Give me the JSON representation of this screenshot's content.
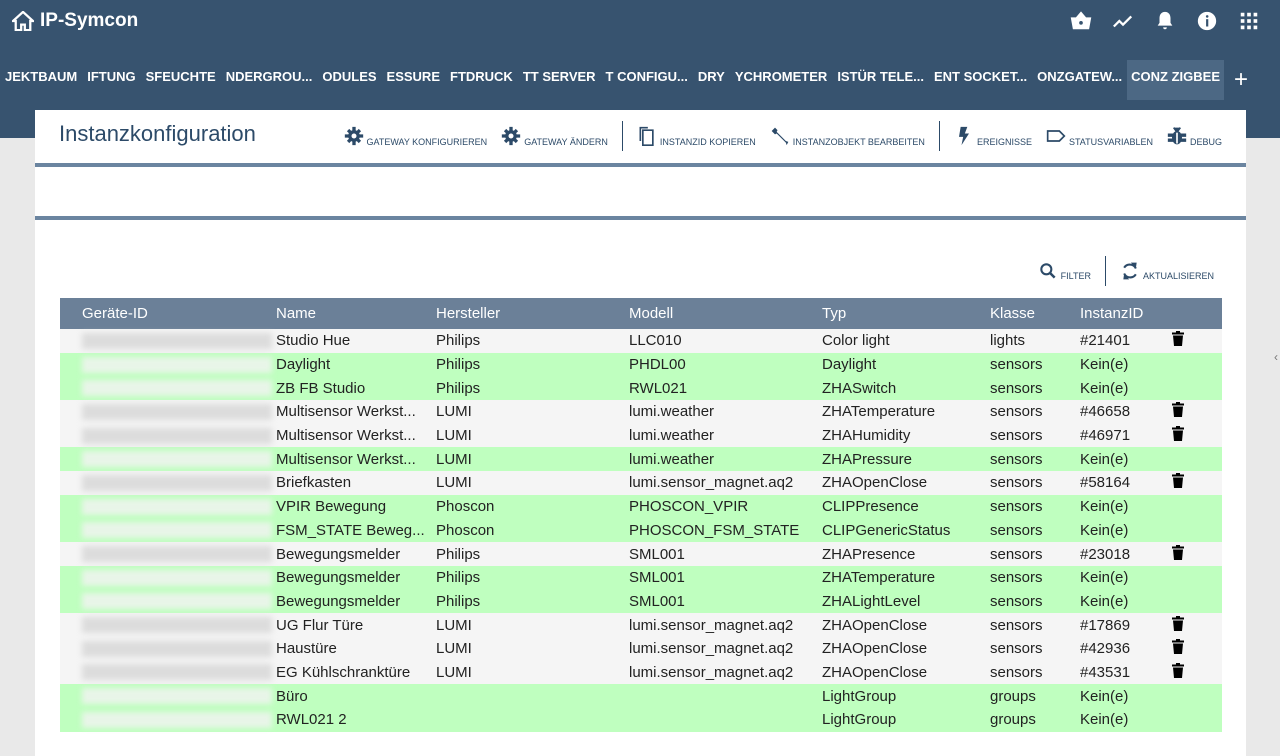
{
  "app": {
    "title": "IP-Symcon"
  },
  "top_icons": [
    "basket-icon",
    "chart-icon",
    "bell-icon",
    "info-icon",
    "grid-icon"
  ],
  "tabs": [
    "JEKTBAUM",
    "IFTUNG",
    "SFEUCHTE",
    "NDERGROU...",
    "ODULES",
    "ESSURE",
    "FTDRUCK",
    "TT SERVER",
    "T CONFIGU...",
    "DRY",
    "YCHROMETER",
    "ISTÜR TELE...",
    "ENT SOCKET...",
    "ONZGATEW...",
    "CONZ ZIGBEE"
  ],
  "active_tab": "CONZ ZIGBEE",
  "page": {
    "title": "Instanzkonfiguration"
  },
  "toolbar": {
    "gateway_config": "GATEWAY KONFIGURIEREN",
    "gateway_change": "GATEWAY ÄNDERN",
    "copy_id": "INSTANZID KOPIEREN",
    "edit": "INSTANZOBJEKT BEARBEITEN",
    "events": "EREIGNISSE",
    "status_vars": "STATUSVARIABLEN",
    "debug": "DEBUG"
  },
  "actions": {
    "filter": "FILTER",
    "refresh": "AKTUALISIEREN"
  },
  "table": {
    "columns": [
      "Geräte-ID",
      "Name",
      "Hersteller",
      "Modell",
      "Typ",
      "Klasse",
      "InstanzID"
    ],
    "rows": [
      {
        "name": "Studio Hue",
        "vendor": "Philips",
        "model": "LLC010",
        "type": "Color light",
        "class": "lights",
        "id": "#21401",
        "del": true,
        "green": false
      },
      {
        "name": "Daylight",
        "vendor": "Philips",
        "model": "PHDL00",
        "type": "Daylight",
        "class": "sensors",
        "id": "Kein(e)",
        "del": false,
        "green": true
      },
      {
        "name": "ZB FB Studio",
        "vendor": "Philips",
        "model": "RWL021",
        "type": "ZHASwitch",
        "class": "sensors",
        "id": "Kein(e)",
        "del": false,
        "green": true
      },
      {
        "name": "Multisensor Werkst...",
        "vendor": "LUMI",
        "model": "lumi.weather",
        "type": "ZHATemperature",
        "class": "sensors",
        "id": "#46658",
        "del": true,
        "green": false
      },
      {
        "name": "Multisensor Werkst...",
        "vendor": "LUMI",
        "model": "lumi.weather",
        "type": "ZHAHumidity",
        "class": "sensors",
        "id": "#46971",
        "del": true,
        "green": false
      },
      {
        "name": "Multisensor Werkst...",
        "vendor": "LUMI",
        "model": "lumi.weather",
        "type": "ZHAPressure",
        "class": "sensors",
        "id": "Kein(e)",
        "del": false,
        "green": true
      },
      {
        "name": "Briefkasten",
        "vendor": "LUMI",
        "model": "lumi.sensor_magnet.aq2",
        "type": "ZHAOpenClose",
        "class": "sensors",
        "id": "#58164",
        "del": true,
        "green": false
      },
      {
        "name": "VPIR Bewegung",
        "vendor": "Phoscon",
        "model": "PHOSCON_VPIR",
        "type": "CLIPPresence",
        "class": "sensors",
        "id": "Kein(e)",
        "del": false,
        "green": true
      },
      {
        "name": "FSM_STATE Beweg...",
        "vendor": "Phoscon",
        "model": "PHOSCON_FSM_STATE",
        "type": "CLIPGenericStatus",
        "class": "sensors",
        "id": "Kein(e)",
        "del": false,
        "green": true
      },
      {
        "name": "Bewegungsmelder",
        "vendor": "Philips",
        "model": "SML001",
        "type": "ZHAPresence",
        "class": "sensors",
        "id": "#23018",
        "del": true,
        "green": false
      },
      {
        "name": "Bewegungsmelder",
        "vendor": "Philips",
        "model": "SML001",
        "type": "ZHATemperature",
        "class": "sensors",
        "id": "Kein(e)",
        "del": false,
        "green": true
      },
      {
        "name": "Bewegungsmelder",
        "vendor": "Philips",
        "model": "SML001",
        "type": "ZHALightLevel",
        "class": "sensors",
        "id": "Kein(e)",
        "del": false,
        "green": true
      },
      {
        "name": "UG Flur Türe",
        "vendor": "LUMI",
        "model": "lumi.sensor_magnet.aq2",
        "type": "ZHAOpenClose",
        "class": "sensors",
        "id": "#17869",
        "del": true,
        "green": false
      },
      {
        "name": "Haustüre",
        "vendor": "LUMI",
        "model": "lumi.sensor_magnet.aq2",
        "type": "ZHAOpenClose",
        "class": "sensors",
        "id": "#42936",
        "del": true,
        "green": false
      },
      {
        "name": "EG Kühlschranktüre",
        "vendor": "LUMI",
        "model": "lumi.sensor_magnet.aq2",
        "type": "ZHAOpenClose",
        "class": "sensors",
        "id": "#43531",
        "del": true,
        "green": false
      },
      {
        "name": "Büro",
        "vendor": "",
        "model": "",
        "type": "LightGroup",
        "class": "groups",
        "id": "Kein(e)",
        "del": false,
        "green": true
      },
      {
        "name": "RWL021 2",
        "vendor": "",
        "model": "",
        "type": "LightGroup",
        "class": "groups",
        "id": "Kein(e)",
        "del": false,
        "green": true
      }
    ]
  },
  "colors": {
    "header": "#37536f",
    "table_header": "#6b8098",
    "row_unconfigured": "#bfffbf",
    "row_configured": "#f5f5f5"
  }
}
